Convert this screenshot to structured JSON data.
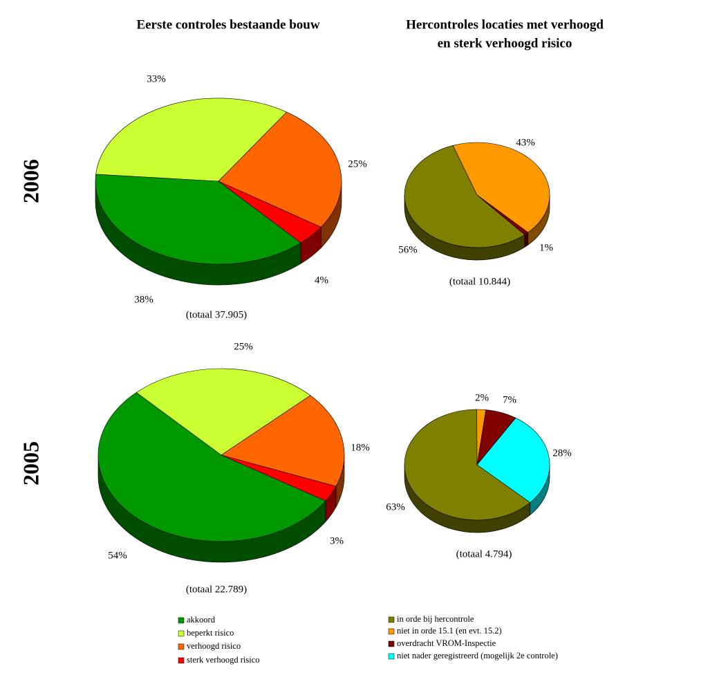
{
  "column_titles": [
    [
      "Eerste controles bestaande bouw"
    ],
    [
      "Hercontroles locaties met verhoogd",
      "en sterk verhoogd risico"
    ]
  ],
  "row_labels": [
    "2006",
    "2005"
  ],
  "chart_data": [
    {
      "type": "pie",
      "categories": [
        "akkoord",
        "beperkt risico",
        "verhoogd risico",
        "sterk verhoogd risico"
      ],
      "values": [
        38,
        33,
        25,
        4
      ],
      "value_labels": [
        "38%",
        "33%",
        "25%",
        "4%"
      ],
      "colors": [
        "#009900",
        "#ccff33",
        "#ff6600",
        "#ff0000"
      ],
      "total_label": "(totaal 37.905)"
    },
    {
      "type": "pie",
      "categories": [
        "in orde bij hercontrole",
        "niet in orde 15.1 (en evt. 15.2)",
        "overdracht VROM-Inspectie"
      ],
      "values": [
        56,
        43,
        1
      ],
      "value_labels": [
        "56%",
        "43%",
        "1%"
      ],
      "colors": [
        "#808000",
        "#ff9900",
        "#800000"
      ],
      "total_label": "(totaal 10.844)"
    },
    {
      "type": "pie",
      "categories": [
        "akkoord",
        "beperkt risico",
        "verhoogd risico",
        "sterk verhoogd risico"
      ],
      "values": [
        54,
        25,
        18,
        3
      ],
      "value_labels": [
        "54%",
        "25%",
        "18%",
        "3%"
      ],
      "colors": [
        "#009900",
        "#ccff33",
        "#ff6600",
        "#ff0000"
      ],
      "total_label": "(totaal 22.789)"
    },
    {
      "type": "pie",
      "categories": [
        "in orde bij hercontrole",
        "niet in orde 15.1 (en evt. 15.2)",
        "overdracht VROM-Inspectie",
        "niet nader geregistreerd (mogelijk 2e controle)"
      ],
      "values": [
        63,
        2,
        7,
        28
      ],
      "value_labels": [
        "63%",
        "2%",
        "7%",
        "28%"
      ],
      "colors": [
        "#808000",
        "#ff9900",
        "#800000",
        "#00ffff"
      ],
      "total_label": "(totaal 4.794)"
    }
  ]
}
